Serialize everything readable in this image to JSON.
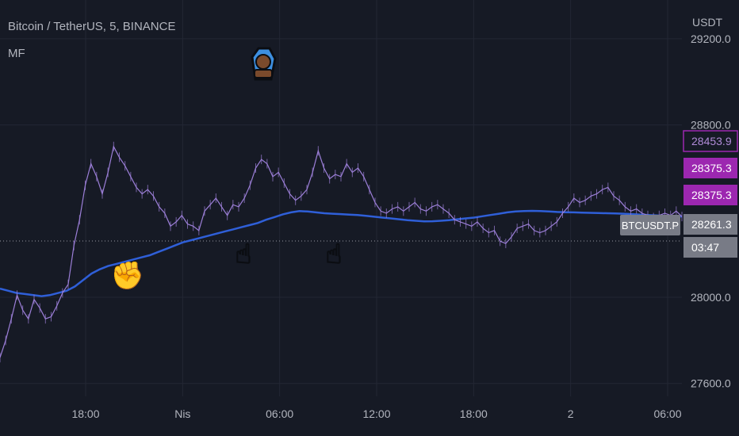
{
  "header": {
    "title": "Bitcoin / TetherUS, 5, BINANCE",
    "indicator": "MF",
    "currency": "USDT"
  },
  "colors": {
    "background": "#161a25",
    "grid": "#232734",
    "text": "#b2b5be",
    "price_line": "#9c7fd8",
    "moving_average": "#2f5fd8",
    "accent_purple": "#9c27b0",
    "gray_label": "#787b86",
    "emoji_skin": "#7a4a2c",
    "emoji_bubble": "#3d8fe0"
  },
  "chart_data": {
    "type": "line",
    "y_axis": {
      "ticks": [
        {
          "value": 29200,
          "label": "29200.0"
        },
        {
          "value": 28800,
          "label": "28800.0"
        },
        {
          "value": 28000,
          "label": "28000.0"
        },
        {
          "value": 27600,
          "label": "27600.0"
        }
      ],
      "ylim": [
        27540,
        29380
      ]
    },
    "x_axis": {
      "ticks": [
        {
          "label": "18:00",
          "index": 0
        },
        {
          "label": "Nis",
          "index": 1
        },
        {
          "label": "06:00",
          "index": 2
        },
        {
          "label": "12:00",
          "index": 3
        },
        {
          "label": "18:00",
          "index": 4
        },
        {
          "label": "2",
          "index": 5
        },
        {
          "label": "06:00",
          "index": 6
        }
      ]
    },
    "series": [
      {
        "values": [
          27720,
          27800,
          27900,
          28010,
          27940,
          27900,
          27990,
          27950,
          27900,
          27910,
          27960,
          28020,
          28060,
          28240,
          28360,
          28520,
          28620,
          28560,
          28480,
          28580,
          28700,
          28650,
          28610,
          28560,
          28510,
          28480,
          28500,
          28470,
          28420,
          28390,
          28330,
          28350,
          28380,
          28340,
          28330,
          28310,
          28400,
          28430,
          28460,
          28420,
          28380,
          28430,
          28420,
          28460,
          28520,
          28600,
          28640,
          28620,
          28560,
          28580,
          28530,
          28480,
          28450,
          28470,
          28500,
          28580,
          28680,
          28600,
          28550,
          28570,
          28560,
          28620,
          28580,
          28600,
          28560,
          28500,
          28440,
          28400,
          28390,
          28410,
          28420,
          28400,
          28420,
          28440,
          28410,
          28400,
          28420,
          28430,
          28410,
          28390,
          28360,
          28350,
          28340,
          28330,
          28350,
          28320,
          28300,
          28310,
          28260,
          28250,
          28280,
          28320,
          28330,
          28340,
          28310,
          28300,
          28310,
          28330,
          28350,
          28390,
          28420,
          28460,
          28440,
          28450,
          28470,
          28480,
          28500,
          28510,
          28470,
          28450,
          28420,
          28400,
          28410,
          28390,
          28380,
          28370,
          28380,
          28390,
          28380,
          28400,
          28375
        ]
      },
      {
        "values": [
          28040,
          28030,
          28020,
          28015,
          28010,
          28005,
          28010,
          28020,
          28030,
          28050,
          28080,
          28110,
          28130,
          28145,
          28155,
          28165,
          28175,
          28185,
          28195,
          28210,
          28225,
          28240,
          28255,
          28265,
          28275,
          28285,
          28295,
          28305,
          28315,
          28325,
          28335,
          28345,
          28360,
          28372,
          28385,
          28394,
          28400,
          28398,
          28394,
          28390,
          28388,
          28386,
          28384,
          28382,
          28378,
          28374,
          28370,
          28366,
          28362,
          28358,
          28355,
          28352,
          28353,
          28355,
          28358,
          28362,
          28366,
          28370,
          28376,
          28382,
          28388,
          28394,
          28398,
          28400,
          28401,
          28400,
          28398,
          28396,
          28395,
          28394,
          28393,
          28392,
          28391,
          28390,
          28389,
          28388,
          28386,
          28384,
          28382,
          28380,
          28378,
          28376,
          28375
        ]
      }
    ],
    "price_labels": [
      {
        "label": "28453.9",
        "style": "outline"
      },
      {
        "label": "28375.3",
        "style": "fill"
      },
      {
        "label": "28375.3",
        "style": "fill"
      },
      {
        "label": "28261.3",
        "style": "gray"
      },
      {
        "label": "03:47",
        "style": "gray"
      }
    ],
    "symbol_label": "BTCUSDT.P",
    "reference_line": 28261.3,
    "annotations": [
      {
        "icon": "raised-fist-icon",
        "glyph": "✊"
      },
      {
        "icon": "pointing-up-hand-icon",
        "glyph": "☝"
      },
      {
        "icon": "pointing-up-hand-icon",
        "glyph": "☝"
      },
      {
        "icon": "person-in-bubble-icon",
        "glyph": "☺"
      }
    ]
  }
}
